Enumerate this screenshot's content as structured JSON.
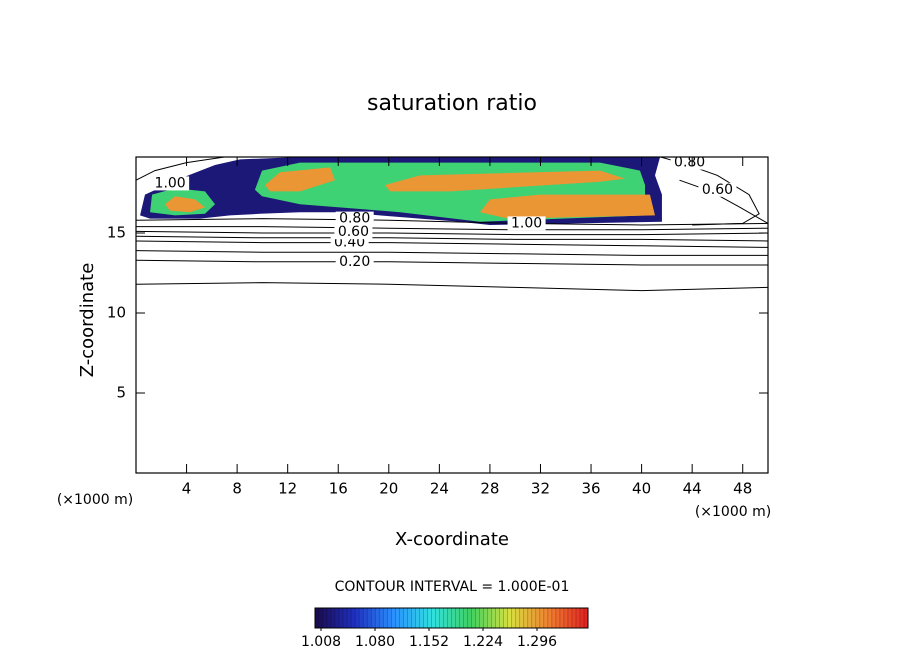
{
  "chart_data": {
    "type": "contour",
    "title": "saturation ratio",
    "xlabel": "X-coordinate",
    "ylabel": "Z-coordinate",
    "x_unit": "(×1000 m)",
    "y_unit": "(×1000 m)",
    "annotation": "CONTOUR INTERVAL = 1.000E-01",
    "xlim": [
      0,
      50
    ],
    "ylim": [
      0,
      19.75
    ],
    "xticks": [
      4,
      8,
      12,
      16,
      20,
      24,
      28,
      32,
      36,
      40,
      44,
      48
    ],
    "yticks": [
      5,
      10,
      15
    ],
    "clim": [
      1.0,
      1.364
    ],
    "cticks": [
      {
        "value": 1.008,
        "label": "1.008"
      },
      {
        "value": 1.08,
        "label": "1.080"
      },
      {
        "value": 1.152,
        "label": "1.152"
      },
      {
        "value": 1.224,
        "label": "1.224"
      },
      {
        "value": 1.296,
        "label": "1.296"
      }
    ],
    "colormap": [
      "#1a0a4a",
      "#1f2fbf",
      "#2a8fff",
      "#30e0e0",
      "#40d060",
      "#d8e040",
      "#f08030",
      "#e02020"
    ],
    "fill_regions": [
      {
        "level": 1.02,
        "x": [
          0.32,
          0.71,
          3.48,
          6.25,
          8.23,
          12.97,
          41.46,
          41.06,
          41.61,
          41.61,
          28.0,
          25.63,
          22.47,
          19.3,
          16.14,
          12.97,
          9.81,
          7.44,
          5.06,
          1.11
        ],
        "y": [
          16.1,
          17.4,
          18.4,
          19.25,
          19.6,
          19.75,
          19.75,
          18.6,
          17.4,
          15.7,
          15.5,
          15.7,
          15.9,
          16.1,
          16.3,
          16.3,
          16.2,
          16.1,
          15.9,
          15.9
        ]
      },
      {
        "level": 1.2,
        "x": [
          1.11,
          1.27,
          3.09,
          5.46,
          6.25,
          5.46,
          3.09
        ],
        "y": [
          16.3,
          17.4,
          17.8,
          17.6,
          16.8,
          16.2,
          16.1
        ]
      },
      {
        "level": 1.2,
        "x": [
          9.41,
          9.97,
          12.97,
          20.89,
          36.71,
          39.87,
          40.27,
          40.27,
          27.22,
          20.89,
          12.97,
          9.97
        ],
        "y": [
          17.7,
          18.9,
          19.4,
          19.4,
          19.4,
          18.9,
          18.0,
          16.1,
          15.7,
          16.3,
          16.8,
          17.3
        ]
      },
      {
        "level": 1.3,
        "x": [
          2.29,
          3.09,
          4.67,
          5.46,
          4.27,
          2.69
        ],
        "y": [
          16.8,
          17.3,
          17.1,
          16.6,
          16.3,
          16.4
        ]
      },
      {
        "level": 1.3,
        "x": [
          10.2,
          11.39,
          15.35,
          15.74,
          12.97,
          10.6
        ],
        "y": [
          18.0,
          18.8,
          19.1,
          18.3,
          17.6,
          17.6
        ]
      },
      {
        "level": 1.3,
        "x": [
          19.7,
          22.47,
          36.71,
          38.69,
          36.71,
          24.84,
          20.1
        ],
        "y": [
          18.0,
          18.6,
          18.9,
          18.4,
          18.2,
          17.6,
          17.6
        ]
      },
      {
        "level": 1.3,
        "x": [
          28.0,
          31.96,
          40.66,
          41.06,
          29.43,
          27.22
        ],
        "y": [
          17.1,
          17.4,
          17.4,
          16.1,
          15.9,
          16.3
        ]
      }
    ],
    "contours": [
      {
        "level": 0.1,
        "x": [
          0,
          10,
          20,
          30,
          40,
          50
        ],
        "y": [
          11.8,
          11.9,
          11.8,
          11.6,
          11.4,
          11.6
        ]
      },
      {
        "level": 0.2,
        "x": [
          0,
          10,
          20,
          30,
          40,
          50
        ],
        "y": [
          13.3,
          13.2,
          13.2,
          13.1,
          13.0,
          13.0
        ]
      },
      {
        "level": 0.3,
        "x": [
          0,
          10,
          20,
          30,
          40,
          50
        ],
        "y": [
          13.9,
          13.8,
          13.8,
          13.7,
          13.6,
          13.6
        ]
      },
      {
        "level": 0.4,
        "x": [
          0,
          10,
          20,
          30,
          40,
          50
        ],
        "y": [
          14.5,
          14.4,
          14.4,
          14.3,
          14.2,
          14.1
        ]
      },
      {
        "level": 0.5,
        "x": [
          0,
          10,
          20,
          30,
          40,
          50
        ],
        "y": [
          14.8,
          14.7,
          14.7,
          14.6,
          14.6,
          14.5
        ]
      },
      {
        "level": 0.6,
        "x": [
          0,
          10,
          20,
          30,
          40,
          50
        ],
        "y": [
          15.1,
          15.0,
          15.0,
          14.9,
          14.9,
          15.0
        ]
      },
      {
        "level": 0.7,
        "x": [
          0,
          10,
          20,
          30,
          40,
          50
        ],
        "y": [
          15.4,
          15.4,
          15.3,
          15.2,
          15.2,
          15.3
        ]
      },
      {
        "level": 0.8,
        "x": [
          0,
          10,
          20,
          30,
          40,
          50
        ],
        "y": [
          15.8,
          15.9,
          15.8,
          15.6,
          15.5,
          15.6
        ]
      },
      {
        "level": 0.8,
        "x": [
          41.5,
          43.5,
          46,
          48.5,
          49.3,
          48,
          44
        ],
        "y": [
          19.75,
          19.3,
          18.6,
          17.4,
          16.2,
          15.6,
          15.5
        ]
      },
      {
        "level": 0.6,
        "x": [
          43,
          45.5,
          47.8,
          50
        ],
        "y": [
          18.3,
          17.6,
          16.6,
          15.6
        ]
      },
      {
        "level": 0.9,
        "x": [
          0,
          1.5,
          4,
          7
        ],
        "y": [
          18.3,
          18.9,
          19.4,
          19.75
        ]
      }
    ],
    "contour_labels": [
      {
        "value": 0.2,
        "label": "0.20",
        "x": 17.3,
        "y": 13.2
      },
      {
        "value": 0.4,
        "label": "0.40",
        "x": 16.9,
        "y": 14.4
      },
      {
        "value": 0.6,
        "label": "0.60",
        "x": 17.2,
        "y": 15.05
      },
      {
        "value": 0.8,
        "label": "0.80",
        "x": 17.3,
        "y": 15.9
      },
      {
        "value": 1.0,
        "label": "1.00",
        "x": 30.9,
        "y": 15.6
      },
      {
        "value": 1.0,
        "label": "1.00",
        "x": 2.7,
        "y": 18.1
      },
      {
        "value": 0.8,
        "label": "0.80",
        "x": 43.8,
        "y": 19.4
      },
      {
        "value": 0.6,
        "label": "0.60",
        "x": 46,
        "y": 17.7
      }
    ]
  }
}
